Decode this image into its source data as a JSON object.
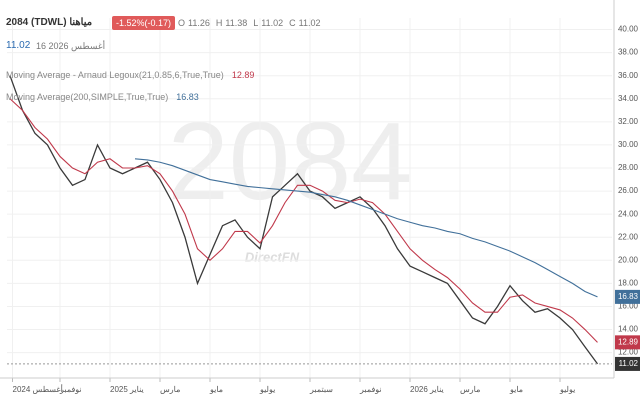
{
  "header": {
    "symbol": "2084 (TDWL) مياهنا",
    "change": "-1.52%(-0.17)",
    "ohlc": [
      {
        "label": "O",
        "value": 11.26
      },
      {
        "label": "H",
        "value": 11.38
      },
      {
        "label": "L",
        "value": 11.02
      },
      {
        "label": "C",
        "value": 11.02
      }
    ],
    "last": 11.02,
    "date": "16 2026 أغسطس",
    "watermark": "2084",
    "brand": "DirectFN"
  },
  "chart_data": {
    "type": "line",
    "x": [
      -2,
      -1.5,
      -1,
      -0.5,
      0,
      0.5,
      1,
      1.5,
      2,
      2.5,
      3,
      3.5,
      4,
      4.5,
      5,
      5.5,
      6,
      6.5,
      7,
      7.5,
      8,
      8.5,
      9,
      9.5,
      10,
      10.5,
      11,
      11.5,
      12,
      12.5,
      13,
      13.5,
      14,
      14.5,
      15,
      15.5,
      16,
      16.5,
      17,
      17.5,
      18,
      18.5,
      19,
      19.5,
      20,
      20.5,
      21,
      21.5
    ],
    "series": [
      {
        "name": "2084",
        "color": "#3a3a3a",
        "values": [
          36,
          33,
          31,
          30,
          28,
          26.5,
          27,
          30,
          28,
          27.5,
          28,
          28.5,
          27,
          25,
          22,
          18,
          20.5,
          23,
          23.5,
          22,
          21,
          25.5,
          26.5,
          27.5,
          26,
          25.5,
          24.5,
          25,
          25.5,
          24.5,
          23,
          21,
          19.5,
          19,
          18.5,
          18,
          16.5,
          15,
          14.5,
          16,
          17.8,
          16.5,
          15.5,
          15.8,
          15,
          14,
          12.5,
          11.02
        ]
      },
      {
        "name": "Moving Average - Arnaud Legoux(21,0.85,6,True,True)",
        "color": "#c0394b",
        "values": [
          34,
          33,
          31.5,
          30.5,
          29,
          28,
          27.5,
          28.5,
          28.8,
          28,
          28,
          28.2,
          27.5,
          26,
          24,
          21,
          20,
          21,
          22.5,
          22.5,
          21.5,
          23,
          25,
          26.5,
          26.5,
          26,
          25.2,
          25,
          25.3,
          25,
          24,
          22.5,
          21,
          20,
          19.2,
          18.5,
          17.5,
          16.3,
          15.5,
          15.5,
          16.8,
          17,
          16.3,
          16,
          15.7,
          15,
          14,
          12.89
        ]
      },
      {
        "name": "Moving Average(200,SIMPLE,True,True)",
        "color": "#41709a",
        "values": [
          null,
          null,
          null,
          null,
          null,
          null,
          null,
          null,
          null,
          null,
          28.8,
          28.7,
          28.5,
          28.2,
          27.8,
          27.4,
          27,
          26.8,
          26.6,
          26.4,
          26.3,
          26.2,
          26.1,
          26,
          25.9,
          25.7,
          25.5,
          25.2,
          24.8,
          24.4,
          24,
          23.6,
          23.3,
          23,
          22.8,
          22.5,
          22.3,
          21.9,
          21.6,
          21.2,
          20.8,
          20.3,
          19.8,
          19.2,
          18.6,
          18,
          17.3,
          16.83
        ]
      }
    ],
    "xlim": [
      -2.12,
      22.08
    ],
    "xticks": [
      {
        "value": -1.9,
        "label": "أغسطس 2024"
      },
      {
        "value": 0,
        "label": "نوفمبر"
      },
      {
        "value": 2,
        "label": "يناير 2025"
      },
      {
        "value": 4,
        "label": "مارس"
      },
      {
        "value": 6,
        "label": "مايو"
      },
      {
        "value": 8,
        "label": "يوليو"
      },
      {
        "value": 10,
        "label": "سبتمبر"
      },
      {
        "value": 12,
        "label": "نوفمبر"
      },
      {
        "value": 14,
        "label": "يناير 2026"
      },
      {
        "value": 16,
        "label": "مارس"
      },
      {
        "value": 18,
        "label": "مايو"
      },
      {
        "value": 20,
        "label": "يوليو"
      }
    ],
    "ylim": [
      9.8,
      41
    ],
    "yticks": [
      {
        "value": 12,
        "label": "12.00"
      },
      {
        "value": 14,
        "label": "14.00"
      },
      {
        "value": 16,
        "label": "16.00"
      },
      {
        "value": 18,
        "label": "18.00"
      },
      {
        "value": 20,
        "label": "20.00"
      },
      {
        "value": 22,
        "label": "22.00"
      },
      {
        "value": 24,
        "label": "24.00"
      },
      {
        "value": 26,
        "label": "26.00"
      },
      {
        "value": 28,
        "label": "28.00"
      },
      {
        "value": 30,
        "label": "30.00"
      },
      {
        "value": 32,
        "label": "32.00"
      },
      {
        "value": 34,
        "label": "34.00"
      },
      {
        "value": 36,
        "label": "36.00"
      },
      {
        "value": 38,
        "label": "38.00"
      },
      {
        "value": 40,
        "label": "40.00"
      }
    ],
    "grid": true
  }
}
